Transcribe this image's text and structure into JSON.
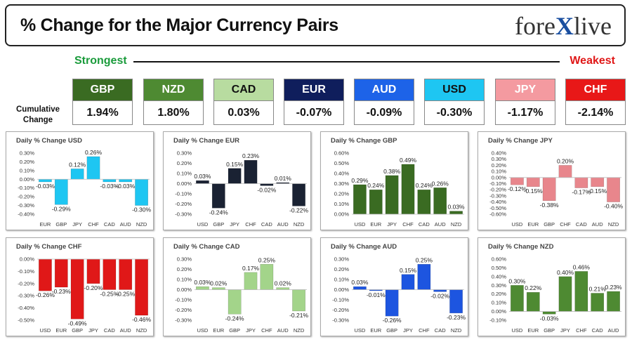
{
  "header": {
    "title": "% Change for the Major Currency Pairs",
    "logo_left": "fore",
    "logo_x": "X",
    "logo_right": "live"
  },
  "strength": {
    "strongest_label": "Strongest",
    "weakest_label": "Weakest",
    "cumulative_label_line1": "Cumulative",
    "cumulative_label_line2": "Change"
  },
  "tiles": [
    {
      "currency": "GBP",
      "value": "1.94%",
      "bg": "#3a6b22",
      "fg": "#ffffff"
    },
    {
      "currency": "NZD",
      "value": "1.80%",
      "bg": "#4e8a32",
      "fg": "#ffffff"
    },
    {
      "currency": "CAD",
      "value": "0.03%",
      "bg": "#b8dca0",
      "fg": "#111111"
    },
    {
      "currency": "EUR",
      "value": "-0.07%",
      "bg": "#0f1e5c",
      "fg": "#ffffff"
    },
    {
      "currency": "AUD",
      "value": "-0.09%",
      "bg": "#1d63e8",
      "fg": "#ffffff"
    },
    {
      "currency": "USD",
      "value": "-0.30%",
      "bg": "#1ec6f2",
      "fg": "#111111"
    },
    {
      "currency": "JPY",
      "value": "-1.17%",
      "bg": "#f49aa0",
      "fg": "#ffffff"
    },
    {
      "currency": "CHF",
      "value": "-2.14%",
      "bg": "#e81818",
      "fg": "#ffffff"
    }
  ],
  "chart_data": [
    {
      "type": "bar",
      "title": "Daily % Change USD",
      "color": "#1ec6f2",
      "categories": [
        "EUR",
        "GBP",
        "JPY",
        "CHF",
        "CAD",
        "AUD",
        "NZD"
      ],
      "values": [
        -0.03,
        -0.29,
        0.12,
        0.26,
        -0.03,
        -0.03,
        -0.3
      ],
      "labels": [
        "-0.03%",
        "-0.29%",
        "0.12%",
        "0.26%",
        "-0.03%",
        "-0.03%",
        "-0.30%"
      ],
      "ylim": [
        -0.4,
        0.3
      ],
      "ticks": [
        0.3,
        0.2,
        0.1,
        0.0,
        -0.1,
        -0.2,
        -0.3,
        -0.4
      ],
      "tick_labels": [
        "0.30%",
        "0.20%",
        "0.10%",
        "0.00%",
        "-0.10%",
        "-0.20%",
        "-0.30%",
        "-0.40%"
      ]
    },
    {
      "type": "bar",
      "title": "Daily % Change EUR",
      "color": "#1a2233",
      "categories": [
        "USD",
        "GBP",
        "JPY",
        "CHF",
        "CAD",
        "AUD",
        "NZD"
      ],
      "values": [
        0.03,
        -0.24,
        0.15,
        0.23,
        -0.02,
        0.01,
        -0.22
      ],
      "labels": [
        "0.03%",
        "-0.24%",
        "0.15%",
        "0.23%",
        "-0.02%",
        "0.01%",
        "-0.22%"
      ],
      "ylim": [
        -0.3,
        0.3
      ],
      "ticks": [
        0.3,
        0.2,
        0.1,
        0.0,
        -0.1,
        -0.2,
        -0.3
      ],
      "tick_labels": [
        "0.30%",
        "0.20%",
        "0.10%",
        "0.00%",
        "-0.10%",
        "-0.20%",
        "-0.30%"
      ]
    },
    {
      "type": "bar",
      "title": "Daily % Change GBP",
      "color": "#3a6b22",
      "categories": [
        "USD",
        "EUR",
        "JPY",
        "CHF",
        "CAD",
        "AUD",
        "NZD"
      ],
      "values": [
        0.29,
        0.24,
        0.38,
        0.49,
        0.24,
        0.26,
        0.03
      ],
      "labels": [
        "0.29%",
        "0.24%",
        "0.38%",
        "0.49%",
        "0.24%",
        "0.26%",
        "0.03%"
      ],
      "ylim": [
        0.0,
        0.6
      ],
      "ticks": [
        0.6,
        0.5,
        0.4,
        0.3,
        0.2,
        0.1,
        0.0
      ],
      "tick_labels": [
        "0.60%",
        "0.50%",
        "0.40%",
        "0.30%",
        "0.20%",
        "0.10%",
        "0.00%"
      ]
    },
    {
      "type": "bar",
      "title": "Daily % Change JPY",
      "color": "#e8868c",
      "categories": [
        "USD",
        "EUR",
        "GBP",
        "CHF",
        "CAD",
        "AUD",
        "NZD"
      ],
      "values": [
        -0.12,
        -0.15,
        -0.38,
        0.2,
        -0.17,
        -0.15,
        -0.4
      ],
      "labels": [
        "-0.12%",
        "-0.15%",
        "-0.38%",
        "0.20%",
        "-0.17%",
        "-0.15%",
        "-0.40%"
      ],
      "ylim": [
        -0.6,
        0.4
      ],
      "ticks": [
        0.4,
        0.3,
        0.2,
        0.1,
        0.0,
        -0.1,
        -0.2,
        -0.3,
        -0.4,
        -0.5,
        -0.6
      ],
      "tick_labels": [
        "0.40%",
        "0.30%",
        "0.20%",
        "0.10%",
        "0.00%",
        "-0.10%",
        "-0.20%",
        "-0.30%",
        "-0.40%",
        "-0.50%",
        "-0.60%"
      ]
    },
    {
      "type": "bar",
      "title": "Daily % Change CHF",
      "color": "#e01818",
      "categories": [
        "USD",
        "EUR",
        "GBP",
        "JPY",
        "CAD",
        "AUD",
        "NZD"
      ],
      "values": [
        -0.26,
        -0.23,
        -0.49,
        -0.2,
        -0.25,
        -0.25,
        -0.46
      ],
      "labels": [
        "-0.26%",
        "-0.23%",
        "-0.49%",
        "-0.20%",
        "-0.25%",
        "-0.25%",
        "-0.46%"
      ],
      "ylim": [
        -0.5,
        0.0
      ],
      "ticks": [
        0.0,
        -0.1,
        -0.2,
        -0.3,
        -0.4,
        -0.5
      ],
      "tick_labels": [
        "0.00%",
        "-0.10%",
        "-0.20%",
        "-0.30%",
        "-0.40%",
        "-0.50%"
      ]
    },
    {
      "type": "bar",
      "title": "Daily % Change CAD",
      "color": "#a3d48a",
      "categories": [
        "USD",
        "EUR",
        "GBP",
        "JPY",
        "CHF",
        "AUD",
        "NZD"
      ],
      "values": [
        0.03,
        0.02,
        -0.24,
        0.17,
        0.25,
        0.02,
        -0.21
      ],
      "labels": [
        "0.03%",
        "0.02%",
        "-0.24%",
        "0.17%",
        "0.25%",
        "0.02%",
        "-0.21%"
      ],
      "ylim": [
        -0.3,
        0.3
      ],
      "ticks": [
        0.3,
        0.2,
        0.1,
        0.0,
        -0.1,
        -0.2,
        -0.3
      ],
      "tick_labels": [
        "0.30%",
        "0.20%",
        "0.10%",
        "0.00%",
        "-0.10%",
        "-0.20%",
        "-0.30%"
      ]
    },
    {
      "type": "bar",
      "title": "Daily % Change AUD",
      "color": "#1d55e0",
      "categories": [
        "USD",
        "EUR",
        "GBP",
        "JPY",
        "CHF",
        "CAD",
        "NZD"
      ],
      "values": [
        0.03,
        -0.01,
        -0.26,
        0.15,
        0.25,
        -0.02,
        -0.23
      ],
      "labels": [
        "0.03%",
        "-0.01%",
        "-0.26%",
        "0.15%",
        "0.25%",
        "-0.02%",
        "-0.23%"
      ],
      "ylim": [
        -0.3,
        0.3
      ],
      "ticks": [
        0.3,
        0.2,
        0.1,
        0.0,
        -0.1,
        -0.2,
        -0.3
      ],
      "tick_labels": [
        "0.30%",
        "0.20%",
        "0.10%",
        "0.00%",
        "-0.10%",
        "-0.20%",
        "-0.30%"
      ]
    },
    {
      "type": "bar",
      "title": "Daily % Change NZD",
      "color": "#4e8a32",
      "categories": [
        "USD",
        "EUR",
        "GBP",
        "JPY",
        "CHF",
        "CAD",
        "AUD"
      ],
      "values": [
        0.3,
        0.22,
        -0.03,
        0.4,
        0.46,
        0.21,
        0.23
      ],
      "labels": [
        "0.30%",
        "0.22%",
        "-0.03%",
        "0.40%",
        "0.46%",
        "0.21%",
        "0.23%"
      ],
      "ylim": [
        -0.1,
        0.6
      ],
      "ticks": [
        0.6,
        0.5,
        0.4,
        0.3,
        0.2,
        0.1,
        0.0,
        -0.1
      ],
      "tick_labels": [
        "0.60%",
        "0.50%",
        "0.40%",
        "0.30%",
        "0.20%",
        "0.10%",
        "0.00%",
        "-0.10%"
      ]
    }
  ]
}
